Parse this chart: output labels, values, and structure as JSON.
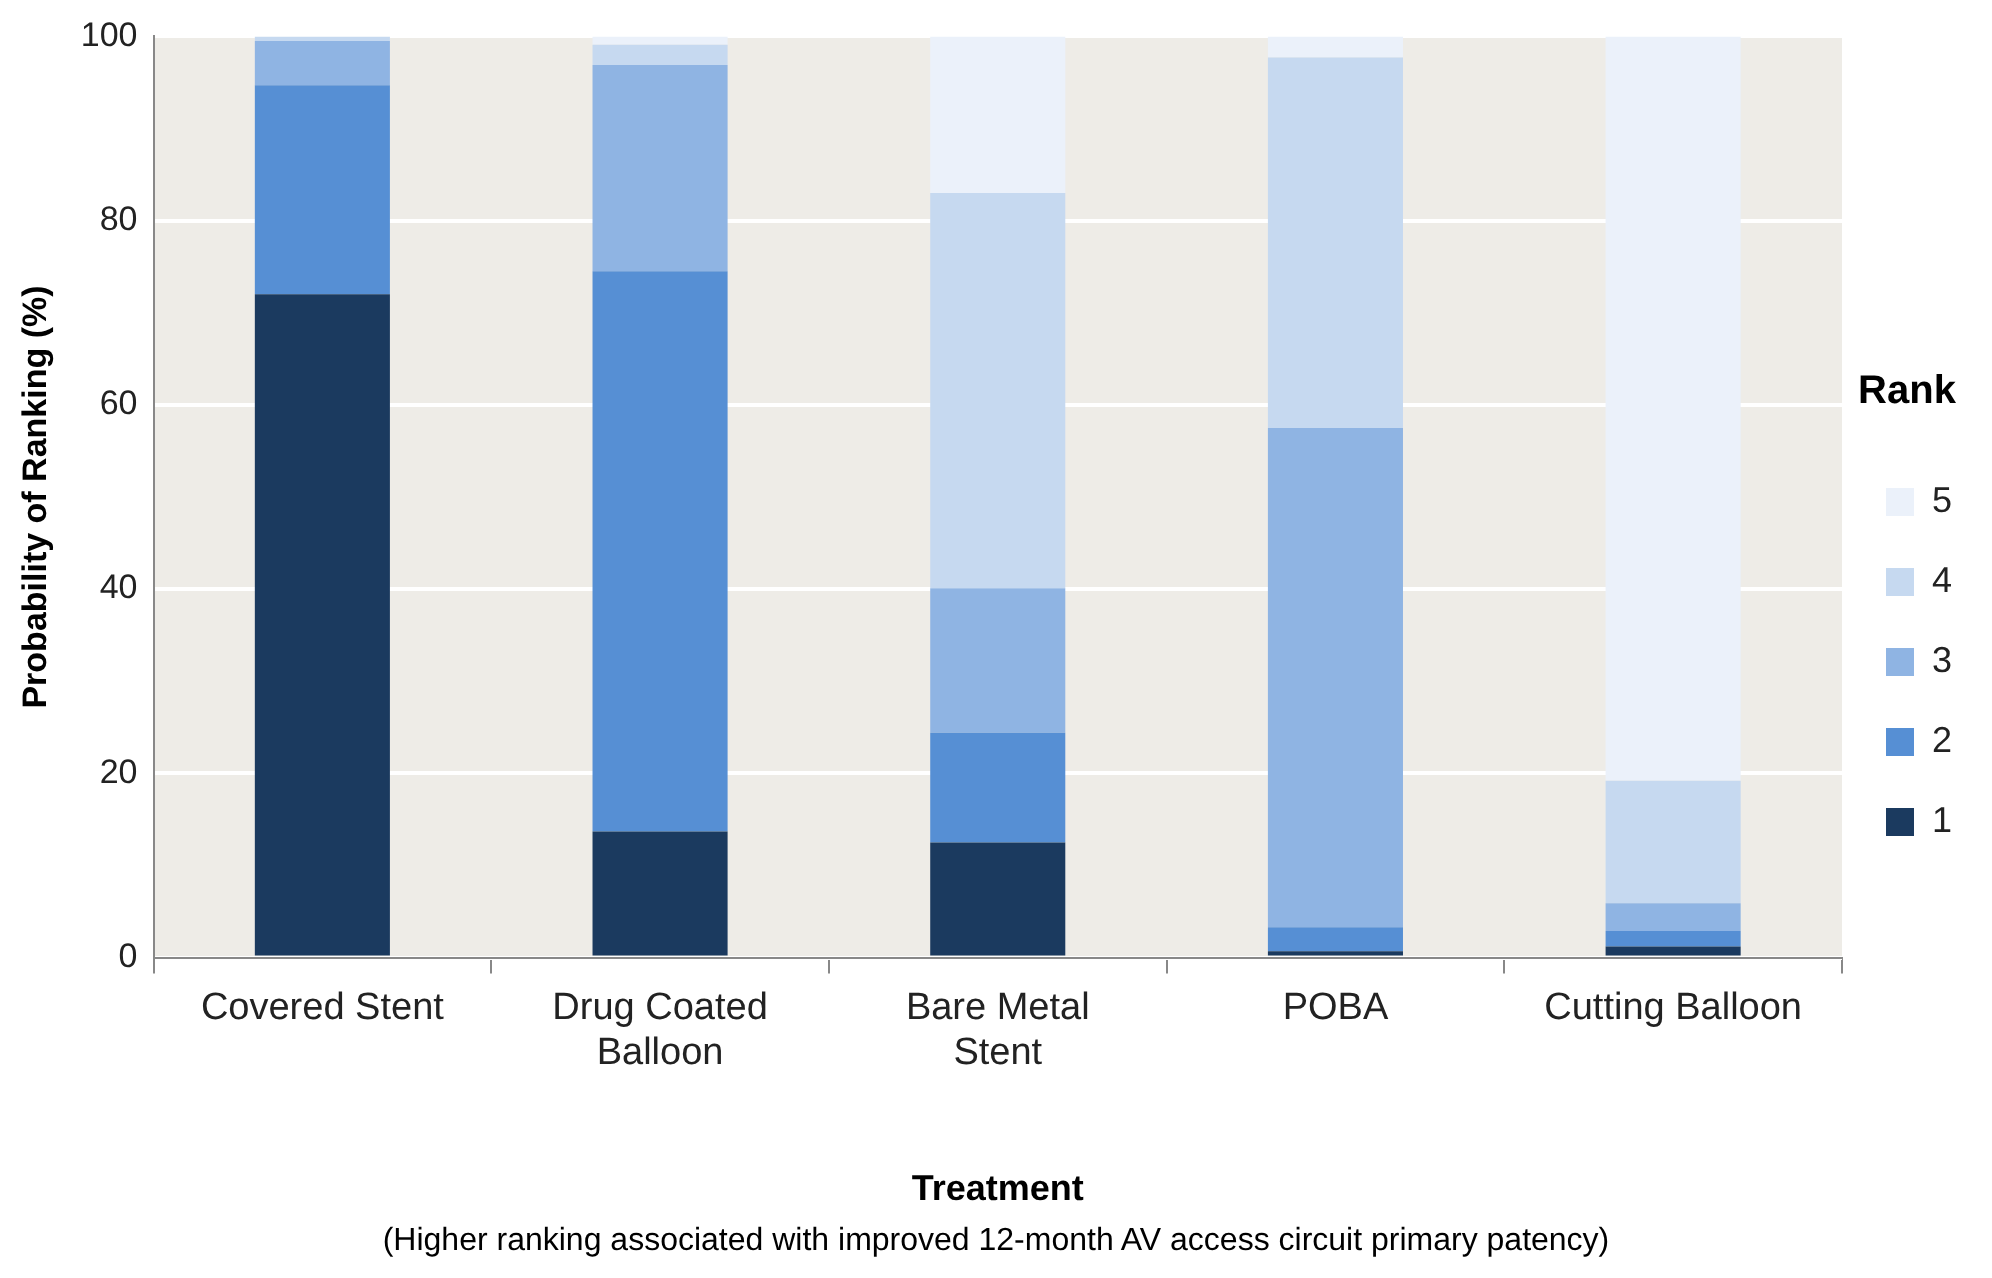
{
  "chart_data": {
    "type": "bar",
    "stacked": true,
    "xlabel": "Treatment",
    "ylabel": "Probability of Ranking (%)",
    "legend_title": "Rank",
    "annotations": [
      "(Higher ranking associated with improved 12-month AV access circuit primary patency)"
    ],
    "categories": [
      "Covered Stent",
      "Drug Coated Balloon",
      "Bare Metal Stent",
      "POBA",
      "Cutting Balloon"
    ],
    "series": [
      {
        "name": "1",
        "color": "#1b3a5f",
        "values": [
          72.0,
          13.7,
          12.5,
          0.7,
          1.2
        ]
      },
      {
        "name": "2",
        "color": "#568fd4",
        "values": [
          22.7,
          60.8,
          11.9,
          2.6,
          1.7
        ]
      },
      {
        "name": "3",
        "color": "#8fb4e3",
        "values": [
          4.8,
          22.4,
          15.7,
          54.2,
          3.0
        ]
      },
      {
        "name": "4",
        "color": "#c6d9f0",
        "values": [
          0.5,
          2.2,
          42.9,
          40.2,
          13.3
        ]
      },
      {
        "name": "5",
        "color": "#ebf1fa",
        "values": [
          0,
          0.9,
          17.0,
          2.3,
          80.8
        ]
      }
    ],
    "ylim": [
      0,
      100
    ],
    "yticks": [
      0,
      20,
      40,
      60,
      80,
      100
    ],
    "grid": "y",
    "legend": "right"
  }
}
